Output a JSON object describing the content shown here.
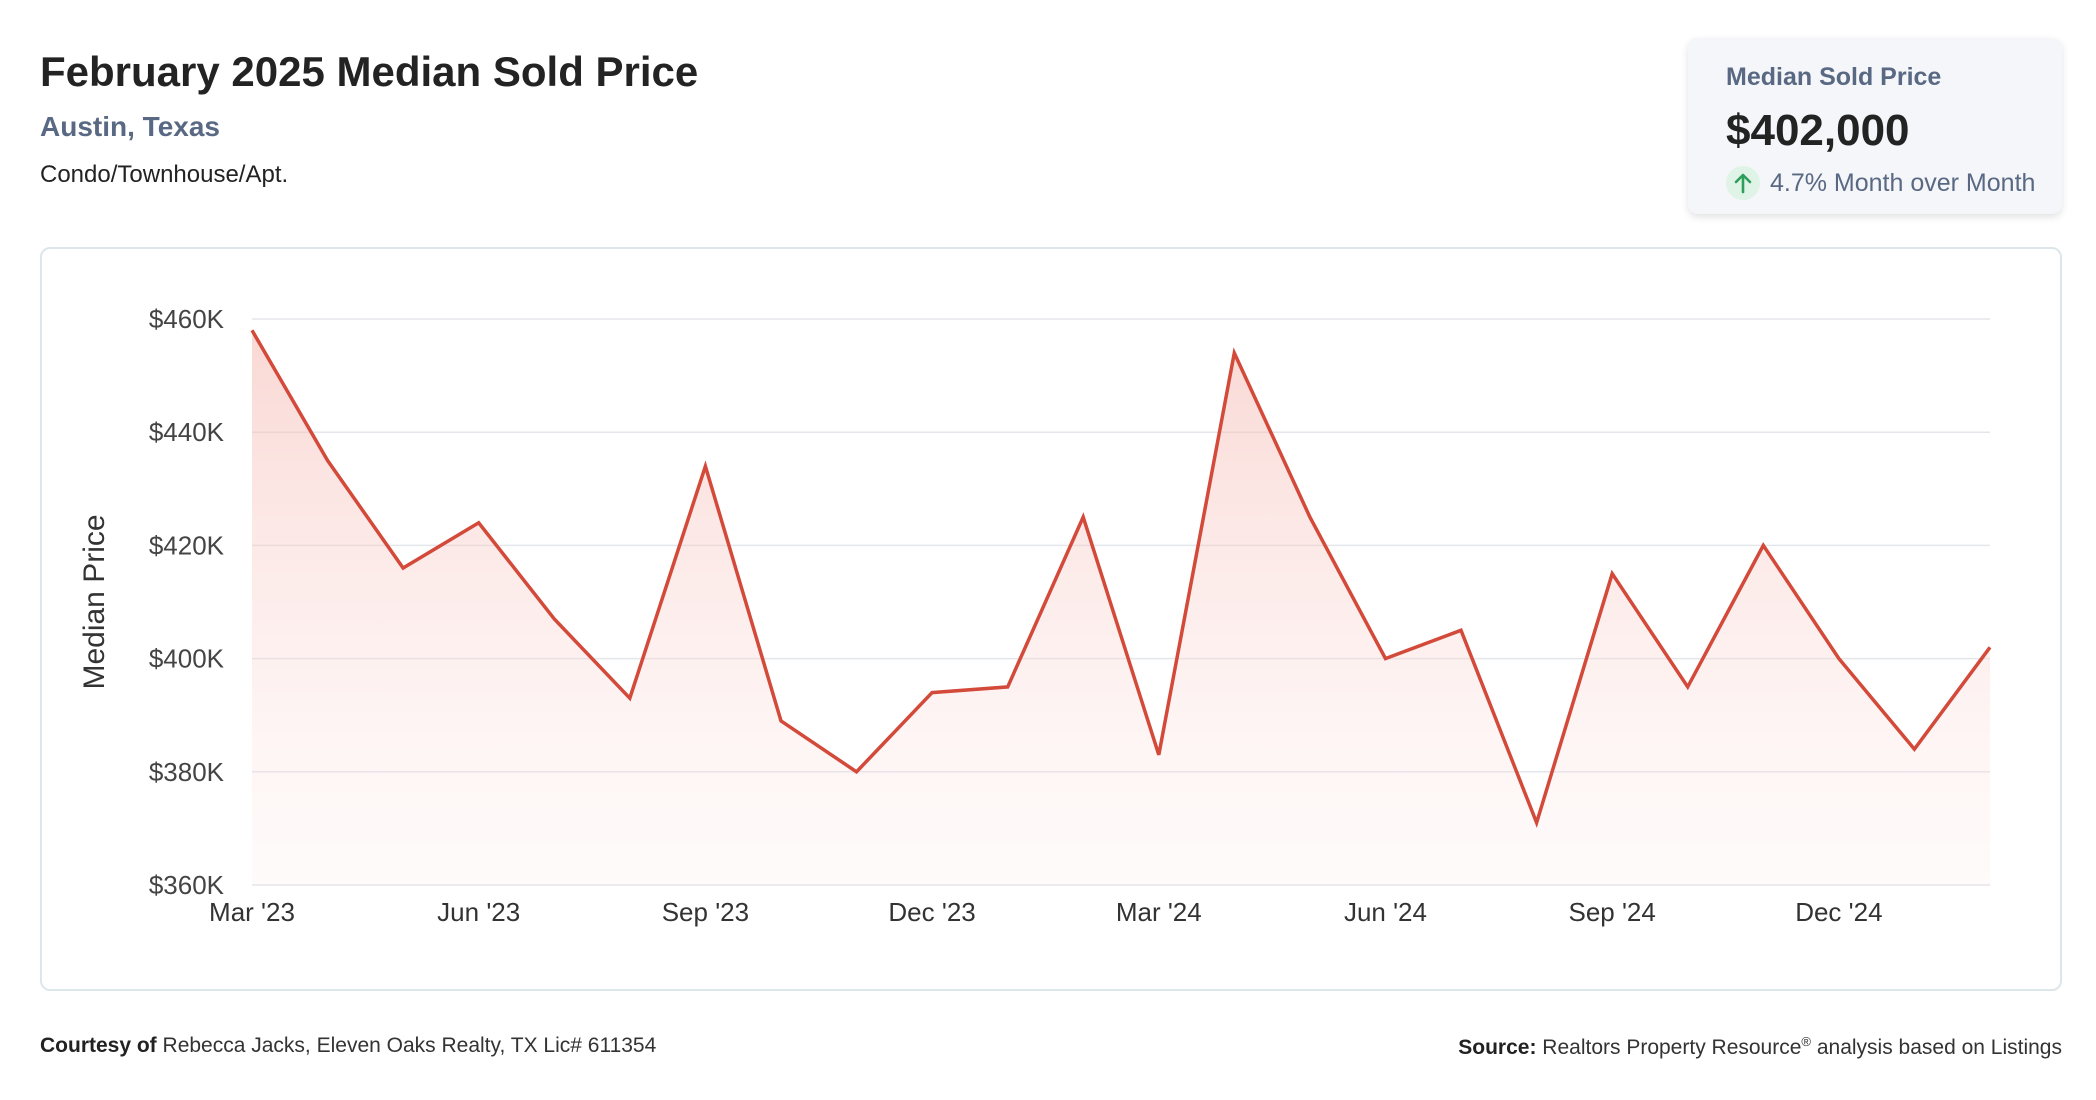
{
  "header": {
    "title": "February 2025 Median Sold Price",
    "location": "Austin, Texas",
    "property_type": "Condo/Townhouse/Apt."
  },
  "stat_card": {
    "label": "Median Sold Price",
    "value": "$402,000",
    "change": "4.7% Month over Month",
    "direction_icon": "arrow-up-icon",
    "direction_color": "#2e9e5b"
  },
  "footer": {
    "courtesy_label": "Courtesy of",
    "courtesy_text": "Rebecca Jacks, Eleven Oaks Realty, TX Lic# 611354",
    "source_label": "Source:",
    "source_text_1": "Realtors Property Resource",
    "source_mark": "®",
    "source_text_2": " analysis based on Listings"
  },
  "chart_data": {
    "type": "area",
    "ylabel": "Median Price",
    "ylim": [
      360000,
      460000
    ],
    "y_ticks": [
      360000,
      380000,
      400000,
      420000,
      440000,
      460000
    ],
    "y_tick_labels": [
      "$360K",
      "$380K",
      "$400K",
      "$420K",
      "$440K",
      "$460K"
    ],
    "x": [
      "Mar '23",
      "Apr '23",
      "May '23",
      "Jun '23",
      "Jul '23",
      "Aug '23",
      "Sep '23",
      "Oct '23",
      "Nov '23",
      "Dec '23",
      "Jan '24",
      "Feb '24",
      "Mar '24",
      "Apr '24",
      "May '24",
      "Jun '24",
      "Jul '24",
      "Aug '24",
      "Sep '24",
      "Oct '24",
      "Nov '24",
      "Dec '24",
      "Jan '25",
      "Feb '25"
    ],
    "x_tick_labels": [
      "Mar '23",
      "Jun '23",
      "Sep '23",
      "Dec '23",
      "Mar '24",
      "Jun '24",
      "Sep '24",
      "Dec '24"
    ],
    "values": [
      458000,
      435000,
      416000,
      424000,
      407000,
      393000,
      434000,
      389000,
      380000,
      394000,
      395000,
      425000,
      383000,
      454000,
      425000,
      400000,
      405000,
      371000,
      415000,
      395000,
      420000,
      400000,
      384000,
      402000
    ],
    "line_color": "#d34a3a",
    "fill_color": "#f7c9c4",
    "grid": true
  }
}
